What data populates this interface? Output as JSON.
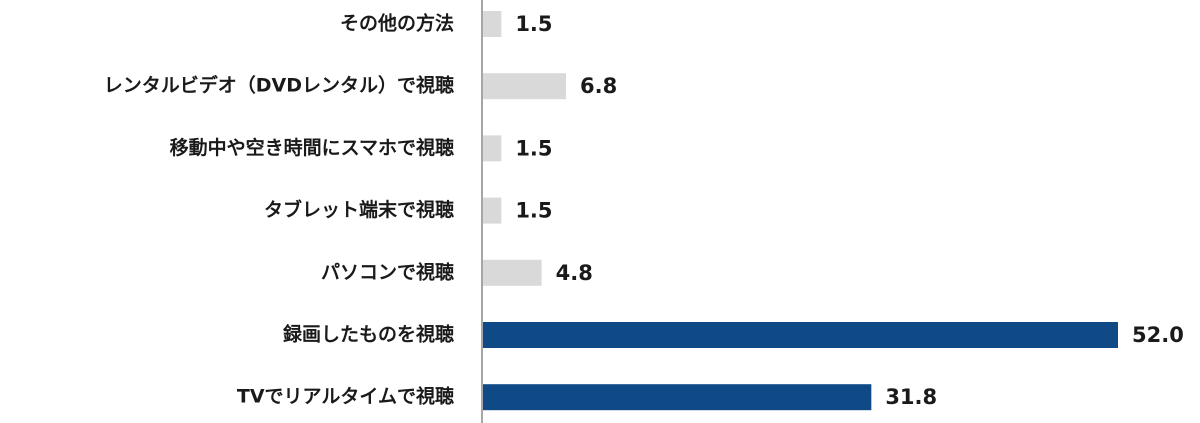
{
  "chart_data": {
    "type": "bar",
    "orientation": "horizontal",
    "categories": [
      "その他の方法",
      "レンタルビデオ（DVDレンタル）で視聴",
      "移動中や空き時間にスマホで視聴",
      "タブレット端末で視聴",
      "パソコンで視聴",
      "録画したものを視聴",
      "TVでリアルタイムで視聴"
    ],
    "values": [
      1.5,
      6.8,
      1.5,
      1.5,
      4.8,
      52.0,
      31.8
    ],
    "value_labels": [
      "1.5",
      "6.8",
      "1.5",
      "1.5",
      "4.8",
      "52.0",
      "31.8"
    ],
    "bar_colors": [
      "#d9d9d9",
      "#d9d9d9",
      "#d9d9d9",
      "#d9d9d9",
      "#d9d9d9",
      "#0f4a86",
      "#0f4a86"
    ],
    "title": "",
    "xlabel": "",
    "ylabel": "",
    "xlim": [
      0,
      52
    ],
    "grid": false,
    "legend": "none"
  },
  "colors": {
    "axis": "#a6a6a6",
    "highlight_bar": "#0f4a86",
    "muted_bar": "#d9d9d9",
    "text": "#1a1a1a"
  }
}
